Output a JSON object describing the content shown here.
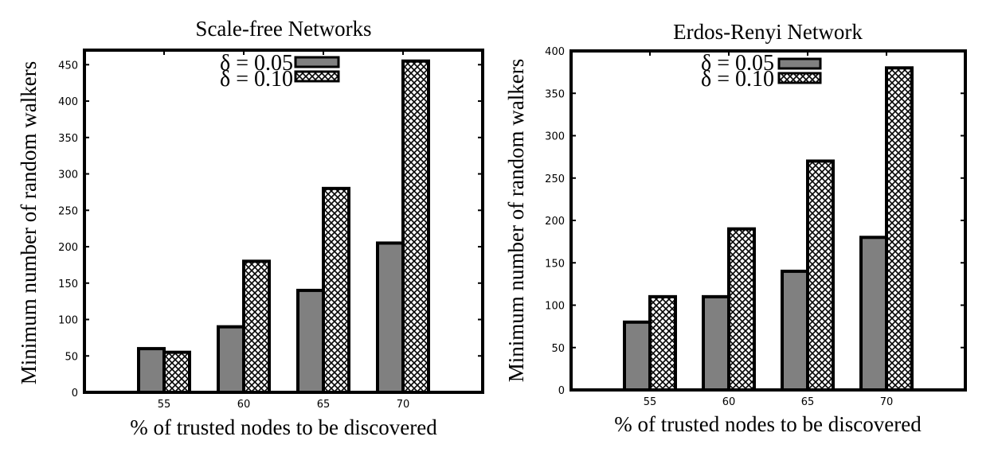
{
  "chart_data": [
    {
      "type": "bar",
      "title": "Scale-free Networks",
      "xlabel": "% of trusted nodes to be discovered",
      "ylabel": "Minimum number of random walkers",
      "categories": [
        "55",
        "60",
        "65",
        "70"
      ],
      "ylim": [
        0,
        470
      ],
      "yticks": [
        0,
        50,
        100,
        150,
        200,
        250,
        300,
        350,
        400,
        450
      ],
      "legend_position": "top-center",
      "grid": false,
      "series": [
        {
          "name": "δ = 0.05",
          "values": [
            60,
            90,
            140,
            205
          ],
          "fill": "solid-gray",
          "color": "#808080"
        },
        {
          "name": "δ = 0.10",
          "values": [
            55,
            180,
            280,
            455
          ],
          "fill": "crosshatch",
          "color": "#000000"
        }
      ]
    },
    {
      "type": "bar",
      "title": "Erdos-Renyi Network",
      "xlabel": "% of trusted nodes to be discovered",
      "ylabel": "Minimum number of random walkers",
      "categories": [
        "55",
        "60",
        "65",
        "70"
      ],
      "ylim": [
        0,
        400
      ],
      "yticks": [
        0,
        50,
        100,
        150,
        200,
        250,
        300,
        350,
        400
      ],
      "legend_position": "top-center",
      "grid": false,
      "series": [
        {
          "name": "δ = 0.05",
          "values": [
            80,
            110,
            140,
            180
          ],
          "fill": "solid-gray",
          "color": "#808080"
        },
        {
          "name": "δ = 0.10",
          "values": [
            110,
            190,
            270,
            380
          ],
          "fill": "crosshatch",
          "color": "#000000"
        }
      ]
    }
  ]
}
